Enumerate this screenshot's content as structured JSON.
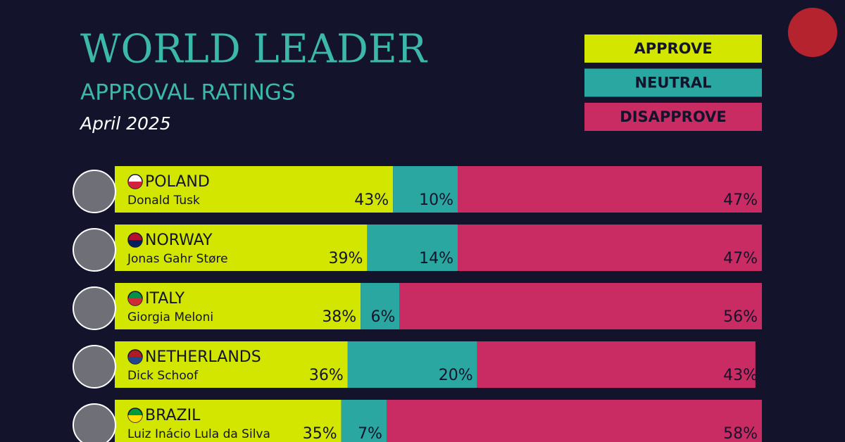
{
  "chart_data": {
    "type": "stacked-bar",
    "orientation": "horizontal",
    "title": "WORLD LEADER",
    "subtitle": "APPROVAL RATINGS",
    "date": "April 2025",
    "categories": [
      "POLAND",
      "NORWAY",
      "ITALY",
      "NETHERLANDS",
      "BRAZIL"
    ],
    "leaders": [
      "Donald Tusk",
      "Jonas Gahr Støre",
      "Giorgia Meloni",
      "Dick Schoof",
      "Luiz Inácio Lula da Silva"
    ],
    "xlim": [
      0,
      100
    ],
    "legend_position": "top-right",
    "series": [
      {
        "name": "APPROVE",
        "color": "#d3e600",
        "values": [
          43,
          39,
          38,
          36,
          35
        ],
        "value_labels": [
          "43%",
          "39%",
          "38%",
          "36%",
          "35%"
        ]
      },
      {
        "name": "NEUTRAL",
        "color": "#2aa7a1",
        "values": [
          10,
          14,
          6,
          20,
          7
        ],
        "value_labels": [
          "10%",
          "14%",
          "6%",
          "20%",
          "7%"
        ]
      },
      {
        "name": "DISAPPROVE",
        "color": "#c92b63",
        "values": [
          47,
          47,
          56,
          43,
          58
        ],
        "value_labels": [
          "47%",
          "47%",
          "56%",
          "43%",
          "58%"
        ]
      }
    ]
  }
}
